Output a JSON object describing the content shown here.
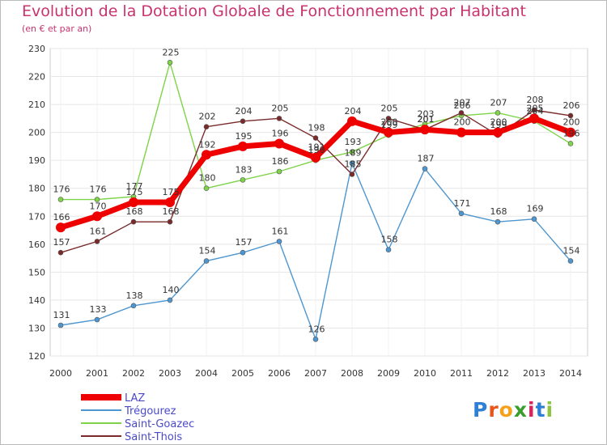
{
  "title": "Evolution de la Dotation Globale de Fonctionnement par Habitant",
  "subtitle": "(en € et par an)",
  "logo": {
    "letters": [
      "P",
      "r",
      "o",
      "x",
      "i",
      "t",
      "i"
    ],
    "colors": [
      "#2e7fd6",
      "#e8541b",
      "#f5a11b",
      "#3a9d2e",
      "#d6245c",
      "#2e7fd6",
      "#8cc63e"
    ]
  },
  "chart_data": {
    "type": "line",
    "x": [
      "2000",
      "2001",
      "2002",
      "2003",
      "2004",
      "2005",
      "2006",
      "2007",
      "2008",
      "2009",
      "2010",
      "2011",
      "2012",
      "2013",
      "2014"
    ],
    "yticks": [
      "120",
      "130",
      "140",
      "150",
      "160",
      "170",
      "180",
      "190",
      "200",
      "210",
      "220",
      "230"
    ],
    "ylim": [
      120,
      230
    ],
    "grid": true,
    "legend": "bottom-left",
    "series": [
      {
        "name": "LAZ",
        "color": "#ee0000",
        "values": [
          166,
          170,
          175,
          175,
          192,
          195,
          196,
          191,
          204,
          200,
          201,
          200,
          200,
          205,
          200
        ],
        "labels": [
          "166",
          "170",
          "175",
          "175",
          "192",
          "195",
          "196",
          "191",
          "204",
          "200",
          "201",
          "200",
          "200",
          "205",
          "200"
        ]
      },
      {
        "name": "Trégourez",
        "color": "#4d96d0",
        "values": [
          131,
          133,
          138,
          140,
          154,
          157,
          161,
          126,
          189,
          158,
          187,
          171,
          168,
          169,
          154
        ],
        "labels": [
          "131",
          "133",
          "138",
          "140",
          "154",
          "157",
          "161",
          "126",
          "189",
          "158",
          "187",
          "171",
          "168",
          "169",
          "154"
        ]
      },
      {
        "name": "Saint-Goazec",
        "color": "#7ed348",
        "values": [
          176,
          176,
          177,
          225,
          180,
          183,
          186,
          190,
          193,
          199,
          203,
          206,
          207,
          204,
          196
        ],
        "labels": [
          "176",
          "176",
          "177",
          "225",
          "180",
          "183",
          "186",
          "190",
          "193",
          "199",
          "203",
          "206",
          "207",
          "204",
          "196"
        ]
      },
      {
        "name": "Saint-Thois",
        "color": "#7a2a2a",
        "values": [
          157,
          161,
          168,
          168,
          202,
          204,
          205,
          198,
          185,
          205,
          201,
          207,
          199,
          208,
          206
        ],
        "labels": [
          "157",
          "161",
          "168",
          "168",
          "202",
          "204",
          "205",
          "198",
          "185",
          "205",
          "201",
          "207",
          "199",
          "208",
          "206"
        ]
      }
    ]
  }
}
